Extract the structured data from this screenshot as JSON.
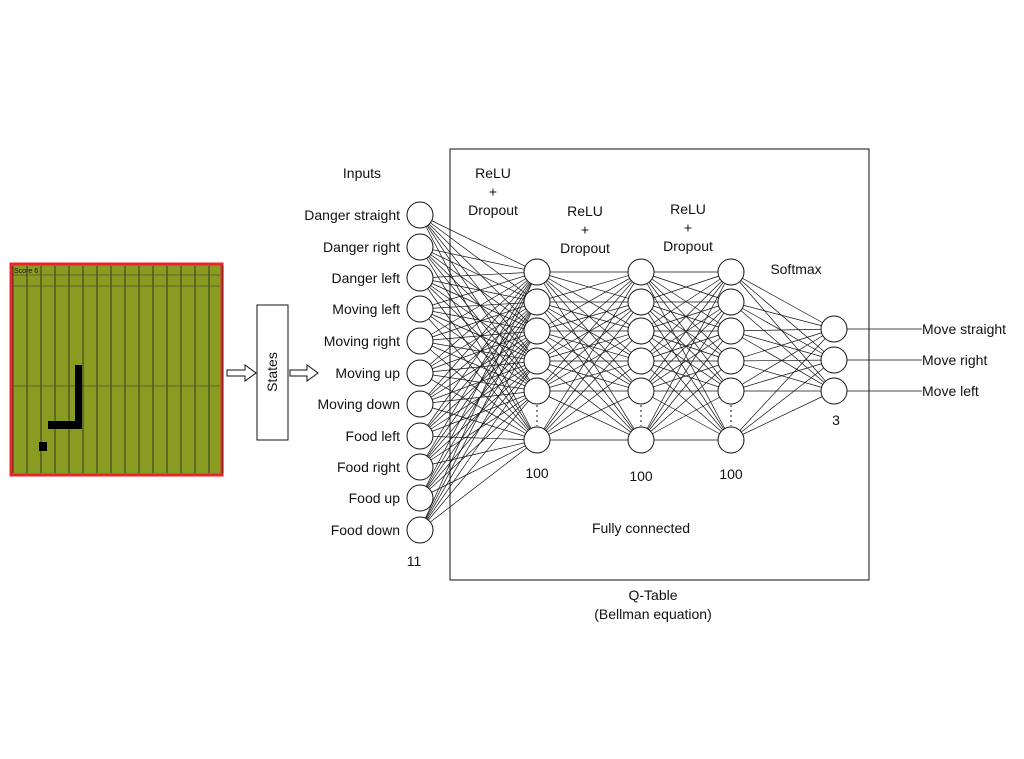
{
  "game": {
    "score_label": "Score 6",
    "board_color": "#8a9b22",
    "border_color": "#e8262a",
    "snake_color": "#000000"
  },
  "states_label": "States",
  "inputs": {
    "title": "Inputs",
    "items": [
      "Danger straight",
      "Danger right",
      "Danger left",
      "Moving left",
      "Moving right",
      "Moving up",
      "Moving down",
      "Food left",
      "Food right",
      "Food up",
      "Food down"
    ],
    "count": "11"
  },
  "layers": [
    {
      "activation": [
        "ReLU",
        "+",
        "Dropout"
      ],
      "size": "100"
    },
    {
      "activation": [
        "ReLU",
        "+",
        "Dropout"
      ],
      "size": "100"
    },
    {
      "activation": [
        "ReLU",
        "+",
        "Dropout"
      ],
      "size": "100"
    }
  ],
  "output": {
    "activation": "Softmax",
    "count": "3",
    "items": [
      "Move straight",
      "Move right",
      "Move left"
    ]
  },
  "network_label": "Fully connected",
  "qtable": {
    "title": "Q-Table",
    "subtitle": "(Bellman equation)"
  }
}
